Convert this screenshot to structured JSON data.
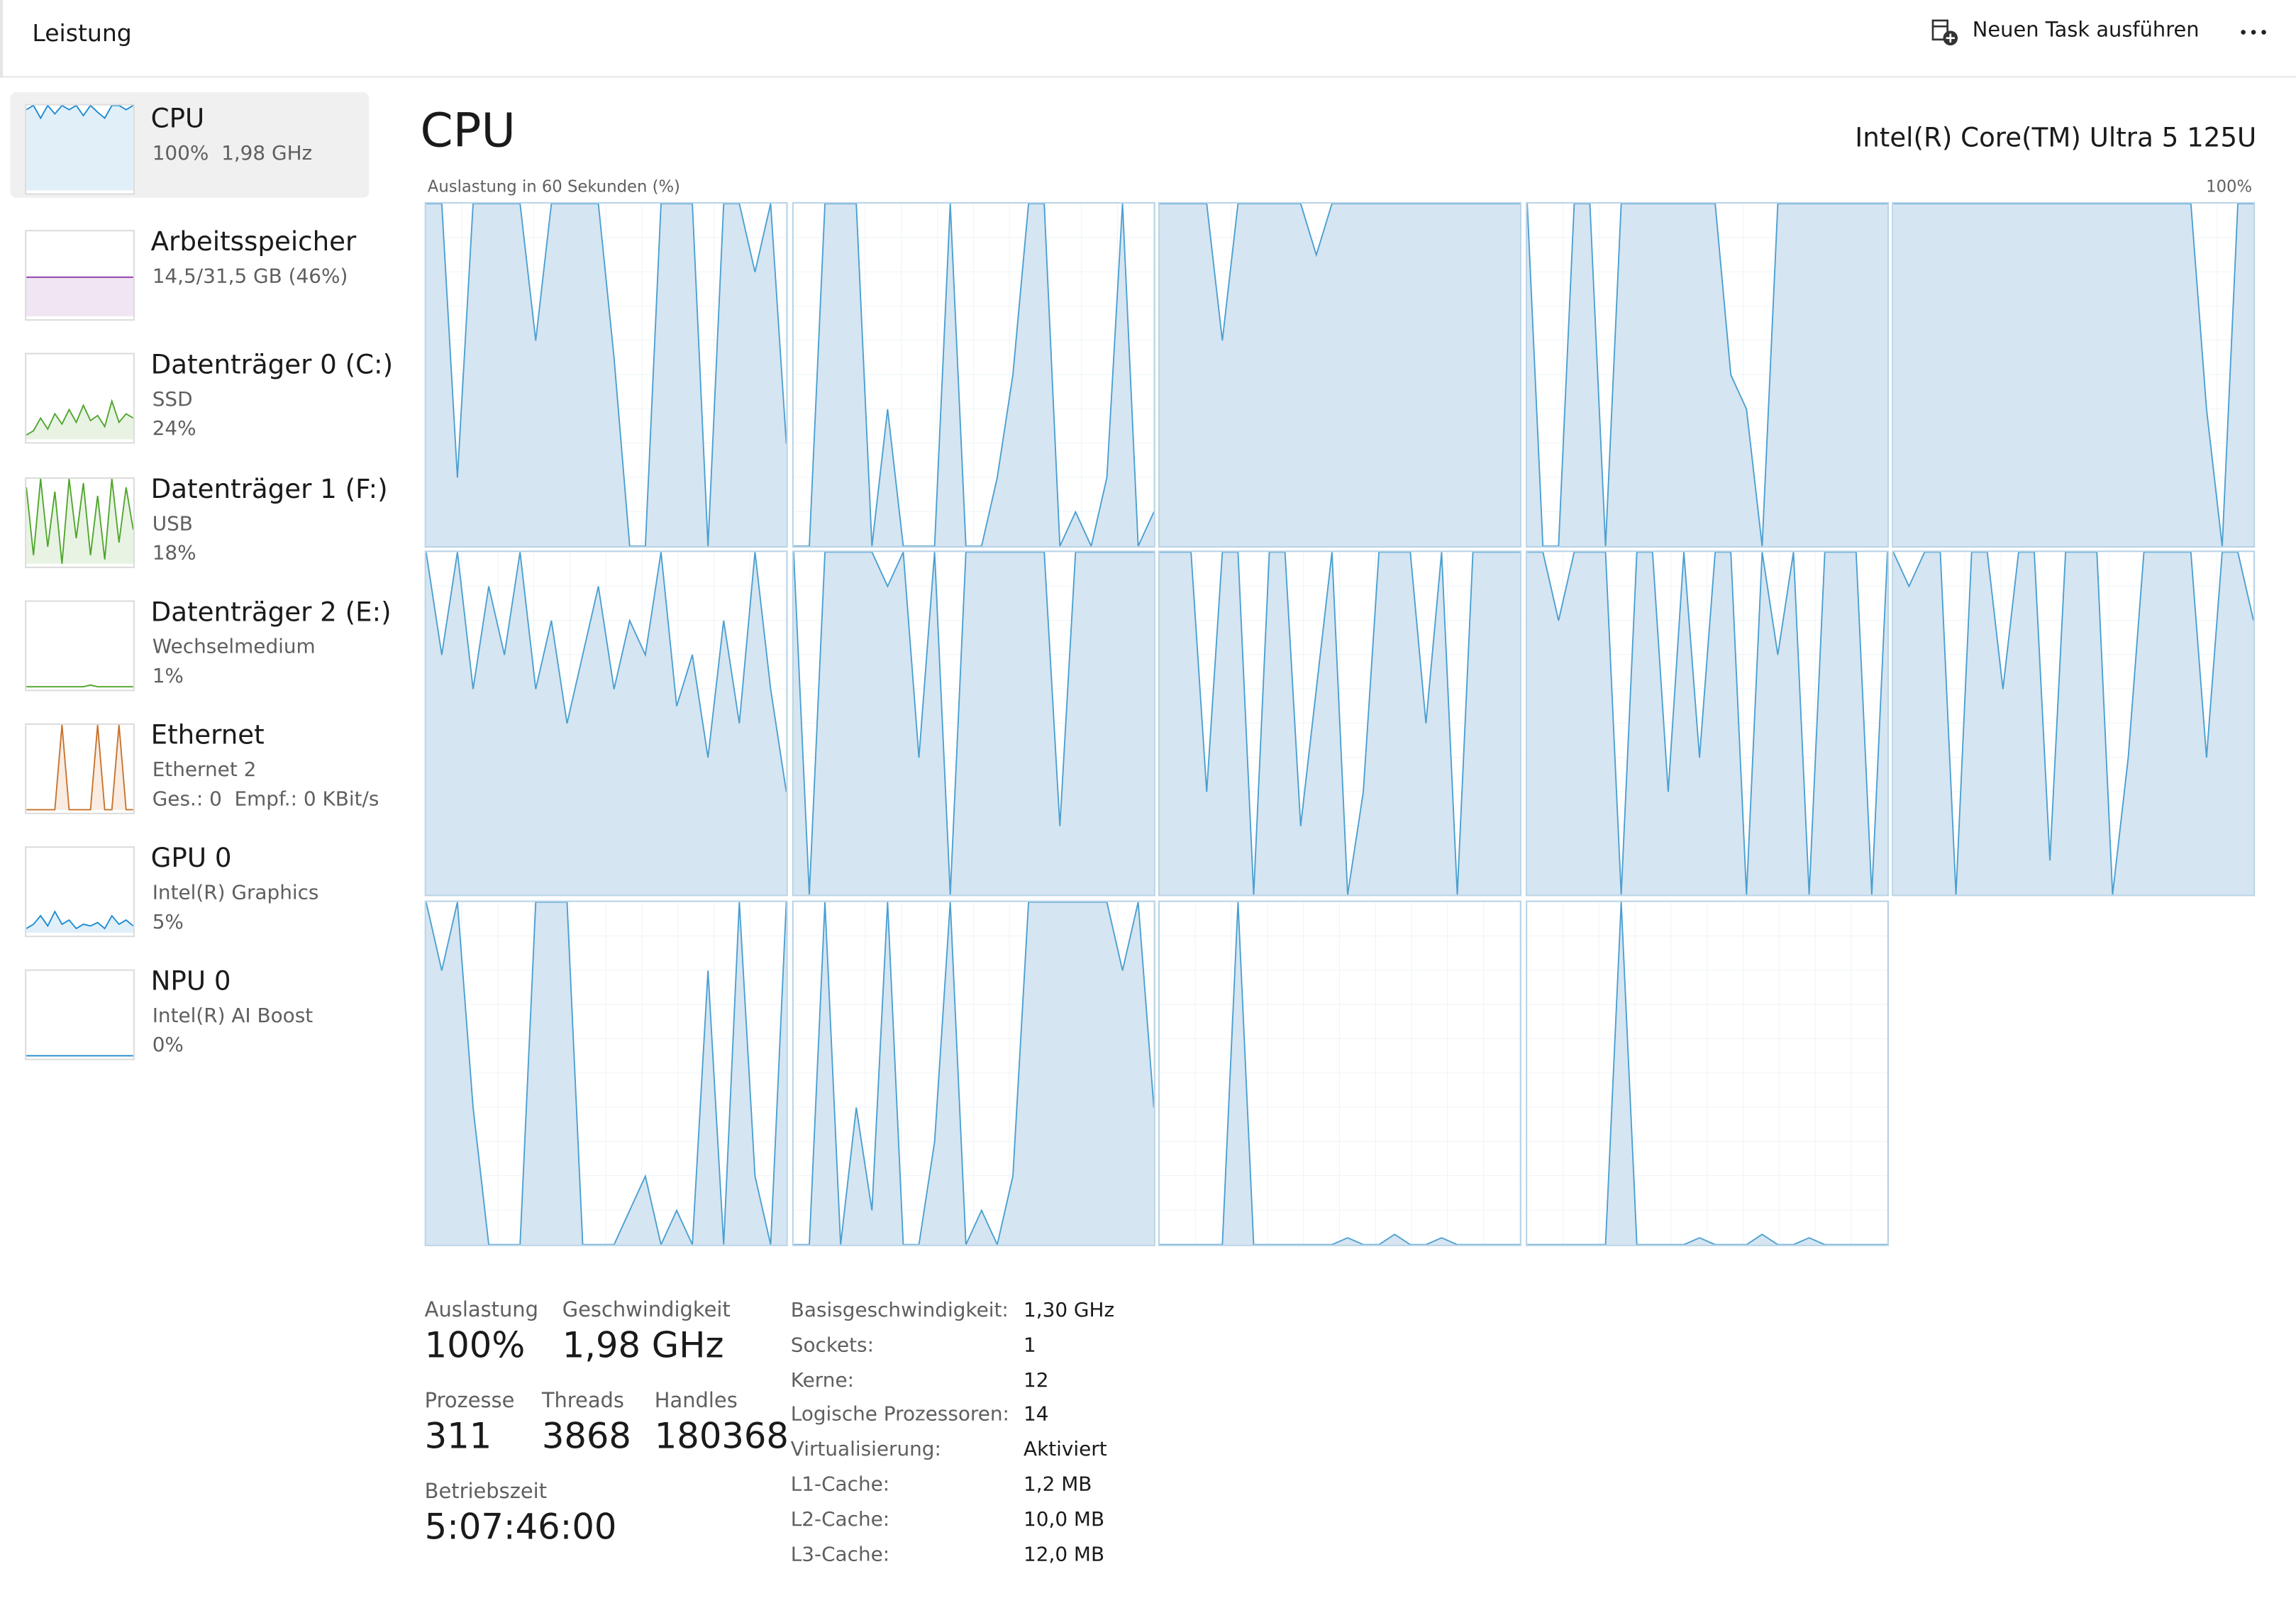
{
  "header": {
    "title": "Leistung",
    "run_task": "Neuen Task ausführen"
  },
  "sidebar": [
    {
      "name": "CPU",
      "lines": [
        "100%  1,98 GHz"
      ],
      "color": "#1b8ad1",
      "values": [
        95,
        100,
        85,
        100,
        90,
        100,
        95,
        100,
        88,
        100,
        92,
        85,
        100,
        100,
        95,
        100
      ]
    },
    {
      "name": "Arbeitsspeicher",
      "lines": [
        "14,5/31,5 GB (46%)"
      ],
      "color": "#8e3aa8",
      "values": [
        46,
        46,
        46,
        46,
        46,
        46,
        46,
        46,
        46,
        46,
        46,
        46
      ]
    },
    {
      "name": "Datenträger 0 (C:)",
      "lines": [
        "SSD",
        "24%"
      ],
      "color": "#4fa52b",
      "values": [
        5,
        10,
        25,
        12,
        30,
        18,
        35,
        20,
        40,
        22,
        28,
        15,
        45,
        20,
        30,
        25
      ]
    },
    {
      "name": "Datenträger 1 (F:)",
      "lines": [
        "USB",
        "18%"
      ],
      "color": "#4fa52b",
      "values": [
        90,
        10,
        100,
        20,
        85,
        0,
        100,
        30,
        95,
        10,
        80,
        5,
        100,
        25,
        90,
        40
      ]
    },
    {
      "name": "Datenträger 2 (E:)",
      "lines": [
        "Wechselmedium",
        "1%"
      ],
      "color": "#4fa52b",
      "values": [
        0,
        0,
        0,
        0,
        0,
        0,
        0,
        0,
        0,
        2,
        0,
        0,
        0,
        0,
        0,
        0
      ]
    },
    {
      "name": "Ethernet",
      "lines": [
        "Ethernet 2",
        "Ges.: 0  Empf.: 0 KBit/s"
      ],
      "color": "#c8722a",
      "values": [
        0,
        0,
        0,
        0,
        0,
        100,
        0,
        0,
        0,
        0,
        100,
        0,
        0,
        100,
        0,
        0
      ]
    },
    {
      "name": "GPU 0",
      "lines": [
        "Intel(R) Graphics",
        "5%"
      ],
      "color": "#1b8ad1",
      "values": [
        5,
        10,
        20,
        8,
        25,
        10,
        15,
        5,
        10,
        8,
        12,
        5,
        20,
        10,
        15,
        8
      ]
    },
    {
      "name": "NPU 0",
      "lines": [
        "Intel(R) AI Boost",
        "0%"
      ],
      "color": "#1b8ad1",
      "values": [
        0,
        0,
        0,
        0,
        0,
        0,
        0,
        0,
        0,
        0,
        0,
        0,
        0,
        0,
        0,
        0
      ]
    }
  ],
  "main": {
    "title": "CPU",
    "processor": "Intel(R) Core(TM) Ultra 5 125U",
    "graph_label": "Auslastung in 60 Sekunden (%)",
    "graph_max": "100%",
    "ylim": [
      0,
      100
    ],
    "cores": [
      [
        100,
        100,
        20,
        100,
        100,
        100,
        100,
        60,
        100,
        100,
        100,
        100,
        55,
        0,
        0,
        100,
        100,
        100,
        0,
        100,
        100,
        80,
        100,
        30
      ],
      [
        0,
        0,
        100,
        100,
        100,
        0,
        40,
        0,
        0,
        0,
        100,
        0,
        0,
        20,
        50,
        100,
        100,
        0,
        10,
        0,
        20,
        100,
        0,
        10
      ],
      [
        100,
        100,
        100,
        100,
        60,
        100,
        100,
        100,
        100,
        100,
        85,
        100,
        100,
        100,
        100,
        100,
        100,
        100,
        100,
        100,
        100,
        100,
        100,
        100
      ],
      [
        100,
        0,
        0,
        100,
        100,
        0,
        100,
        100,
        100,
        100,
        100,
        100,
        100,
        50,
        40,
        0,
        100,
        100,
        100,
        100,
        100,
        100,
        100,
        100
      ],
      [
        100,
        100,
        100,
        100,
        100,
        100,
        100,
        100,
        100,
        100,
        100,
        100,
        100,
        100,
        100,
        100,
        100,
        100,
        100,
        100,
        40,
        0,
        100,
        100
      ],
      [
        100,
        70,
        100,
        60,
        90,
        70,
        100,
        60,
        80,
        50,
        70,
        90,
        60,
        80,
        70,
        100,
        55,
        70,
        40,
        80,
        50,
        100,
        60,
        30
      ],
      [
        100,
        0,
        100,
        100,
        100,
        100,
        90,
        100,
        40,
        100,
        0,
        100,
        100,
        100,
        100,
        100,
        100,
        20,
        100,
        100,
        100,
        100,
        100,
        100
      ],
      [
        100,
        100,
        100,
        30,
        100,
        100,
        0,
        100,
        100,
        20,
        60,
        100,
        0,
        30,
        100,
        100,
        100,
        50,
        100,
        0,
        100,
        100,
        100,
        100
      ],
      [
        100,
        100,
        80,
        100,
        100,
        100,
        0,
        100,
        100,
        30,
        100,
        40,
        100,
        100,
        0,
        100,
        70,
        100,
        0,
        100,
        100,
        100,
        0,
        100
      ],
      [
        100,
        90,
        100,
        100,
        0,
        100,
        100,
        60,
        100,
        100,
        10,
        100,
        100,
        100,
        0,
        40,
        100,
        100,
        100,
        100,
        40,
        100,
        100,
        80
      ],
      [
        100,
        80,
        100,
        40,
        0,
        0,
        0,
        100,
        100,
        100,
        0,
        0,
        0,
        10,
        20,
        0,
        10,
        0,
        80,
        0,
        100,
        20,
        0,
        100
      ],
      [
        0,
        0,
        100,
        0,
        40,
        10,
        100,
        0,
        0,
        30,
        100,
        0,
        10,
        0,
        20,
        100,
        100,
        100,
        100,
        100,
        100,
        80,
        100,
        40
      ],
      [
        0,
        0,
        0,
        0,
        0,
        100,
        0,
        0,
        0,
        0,
        0,
        0,
        2,
        0,
        0,
        3,
        0,
        0,
        2,
        0,
        0,
        0,
        0,
        0
      ],
      [
        0,
        0,
        0,
        0,
        0,
        0,
        100,
        0,
        0,
        0,
        0,
        2,
        0,
        0,
        0,
        3,
        0,
        0,
        2,
        0,
        0,
        0,
        0,
        0
      ]
    ],
    "stats": [
      {
        "label": "Auslastung",
        "value": "100%"
      },
      {
        "label": "Geschwindigkeit",
        "value": "1,98 GHz"
      },
      {
        "label": "Prozesse",
        "value": "311"
      },
      {
        "label": "Threads",
        "value": "3868"
      },
      {
        "label": "Handles",
        "value": "180368"
      },
      {
        "label": "Betriebszeit",
        "value": "5:07:46:00"
      }
    ],
    "specs": [
      [
        "Basisgeschwindigkeit:",
        "1,30 GHz"
      ],
      [
        "Sockets:",
        "1"
      ],
      [
        "Kerne:",
        "12"
      ],
      [
        "Logische Prozessoren:",
        "14"
      ],
      [
        "Virtualisierung:",
        "Aktiviert"
      ],
      [
        "L1-Cache:",
        "1,2 MB"
      ],
      [
        "L2-Cache:",
        "10,0 MB"
      ],
      [
        "L3-Cache:",
        "12,0 MB"
      ]
    ]
  }
}
